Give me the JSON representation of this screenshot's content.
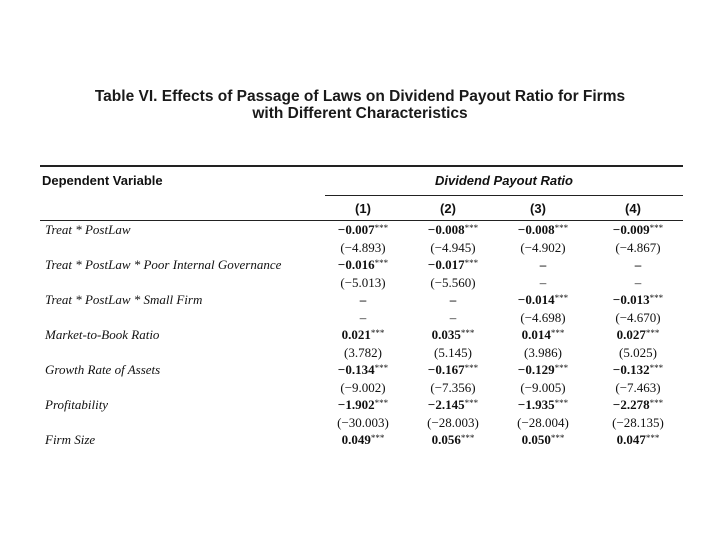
{
  "title": {
    "line1": "Table VI. Effects of Passage of Laws on Dividend Payout Ratio for Firms",
    "line2": "with Different Characteristics"
  },
  "header": {
    "dependent_variable": "Dependent Variable",
    "dividend_payout_ratio": "Dividend Payout Ratio",
    "columns": [
      "(1)",
      "(2)",
      "(3)",
      "(4)"
    ]
  },
  "rows": [
    {
      "label": "Treat * PostLaw",
      "coef": [
        {
          "v": "−0.007",
          "s": "***"
        },
        {
          "v": "−0.008",
          "s": "***"
        },
        {
          "v": "−0.008",
          "s": "***"
        },
        {
          "v": "−0.009",
          "s": "***"
        }
      ],
      "t": [
        "(−4.893)",
        "(−4.945)",
        "(−4.902)",
        "(−4.867)"
      ]
    },
    {
      "label": "Treat * PostLaw * Poor Internal Governance",
      "coef": [
        {
          "v": "−0.016",
          "s": "***"
        },
        {
          "v": "−0.017",
          "s": "***"
        },
        {
          "v": "–",
          "s": ""
        },
        {
          "v": "–",
          "s": ""
        }
      ],
      "t": [
        "(−5.013)",
        "(−5.560)",
        "–",
        "–"
      ]
    },
    {
      "label": "Treat * PostLaw * Small Firm",
      "coef": [
        {
          "v": "–",
          "s": ""
        },
        {
          "v": "–",
          "s": ""
        },
        {
          "v": "−0.014",
          "s": "***"
        },
        {
          "v": "−0.013",
          "s": "***"
        }
      ],
      "t": [
        "–",
        "–",
        "(−4.698)",
        "(−4.670)"
      ]
    },
    {
      "label": "Market-to-Book Ratio",
      "coef": [
        {
          "v": "0.021",
          "s": "***"
        },
        {
          "v": "0.035",
          "s": "***"
        },
        {
          "v": "0.014",
          "s": "***"
        },
        {
          "v": "0.027",
          "s": "***"
        }
      ],
      "t": [
        "(3.782)",
        "(5.145)",
        "(3.986)",
        "(5.025)"
      ]
    },
    {
      "label": "Growth Rate of Assets",
      "coef": [
        {
          "v": "−0.134",
          "s": "***"
        },
        {
          "v": "−0.167",
          "s": "***"
        },
        {
          "v": "−0.129",
          "s": "***"
        },
        {
          "v": "−0.132",
          "s": "***"
        }
      ],
      "t": [
        "(−9.002)",
        "(−7.356)",
        "(−9.005)",
        "(−7.463)"
      ]
    },
    {
      "label": "Profitability",
      "coef": [
        {
          "v": "−1.902",
          "s": "***"
        },
        {
          "v": "−2.145",
          "s": "***"
        },
        {
          "v": "−1.935",
          "s": "***"
        },
        {
          "v": "−2.278",
          "s": "***"
        }
      ],
      "t": [
        "(−30.003)",
        "(−28.003)",
        "(−28.004)",
        "(−28.135)"
      ]
    },
    {
      "label": "Firm Size",
      "coef": [
        {
          "v": "0.049",
          "s": "***"
        },
        {
          "v": "0.056",
          "s": "***"
        },
        {
          "v": "0.050",
          "s": "***"
        },
        {
          "v": "0.047",
          "s": "***"
        }
      ],
      "t": []
    }
  ]
}
